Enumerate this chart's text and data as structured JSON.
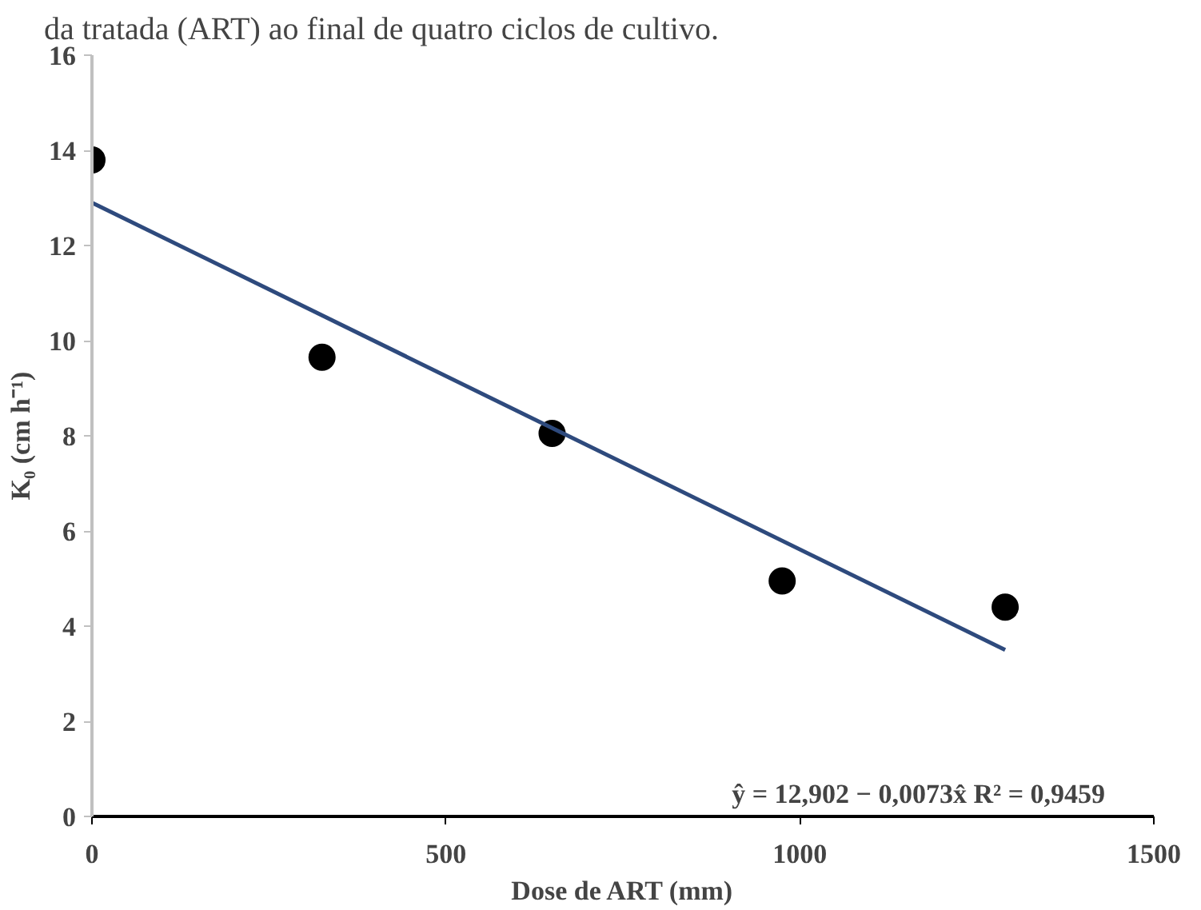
{
  "chart_data": {
    "type": "scatter",
    "xlabel": "Dose de ART (mm)",
    "ylabel": "K₀ (cm h⁻¹)",
    "annotations": [
      "da tratada (ART) ao final de quatro ciclos de cultivo.",
      "ŷ = 12,902 − 0,0073x̂    R² = 0,9459"
    ],
    "series": [
      {
        "color": "#000000",
        "marker": "circle",
        "x": [
          0,
          325,
          650,
          975,
          1290
        ],
        "values": [
          13.8,
          9.65,
          8.05,
          4.95,
          4.4
        ]
      },
      {
        "type": "line",
        "marker": "none",
        "color": "#2e4a7d",
        "x": [
          0,
          1290
        ],
        "values": [
          12.9,
          3.5
        ]
      }
    ],
    "xlim": [
      0,
      1500
    ],
    "xticks": [
      0,
      500,
      1000,
      1500
    ],
    "ylim": [
      0,
      16
    ],
    "yticks": [
      0,
      2,
      4,
      6,
      8,
      10,
      12,
      14,
      16
    ],
    "grid": false
  }
}
